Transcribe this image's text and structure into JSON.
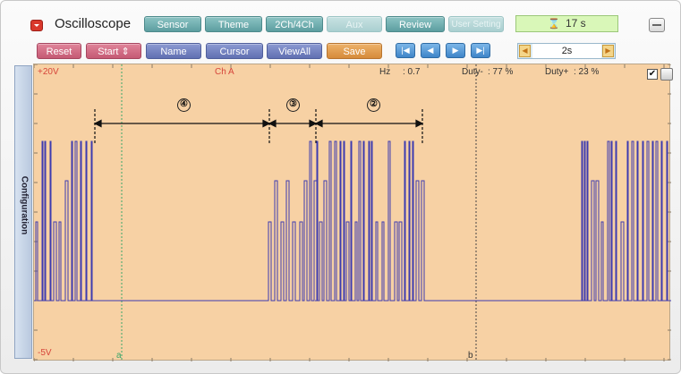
{
  "app": {
    "title": "Oscilloscope",
    "timer": "17 s"
  },
  "toolbar1": [
    {
      "label": "Sensor",
      "enabled": true
    },
    {
      "label": "Theme",
      "enabled": true
    },
    {
      "label": "2Ch/4Ch",
      "enabled": true
    },
    {
      "label": "Aux",
      "enabled": false
    },
    {
      "label": "Review",
      "enabled": true
    },
    {
      "label": "User Setting",
      "enabled": false
    }
  ],
  "toolbar2": {
    "reset": "Reset",
    "start": "Start",
    "start_arrow": "⇕",
    "name": "Name",
    "cursor": "Cursor",
    "viewall": "ViewAll",
    "save": "Save"
  },
  "nav_buttons": [
    "|◀",
    "◀",
    "▶",
    "▶|"
  ],
  "timebase": {
    "value": "2s",
    "left": "◀",
    "right": "▶"
  },
  "sidebar": {
    "label": "Configuration"
  },
  "scope": {
    "y_max": "+20V",
    "y_min": "-5V",
    "channel": "Ch A",
    "hz_label": "Hz",
    "hz_value": ": 0.7",
    "duty_minus_label": "Duty-",
    "duty_minus_value": ": 77 %",
    "duty_plus_label": "Duty+",
    "duty_plus_value": ": 23 %",
    "cursor_a": "a",
    "cursor_b": "b",
    "check_mark": "✔",
    "annotations": [
      "④",
      "③",
      "②"
    ]
  },
  "colors": {
    "trace": "#3d3bb0",
    "screen": "#f7d1a4",
    "accent_teal": "#5c9ea0",
    "alert_red": "#d6453a"
  }
}
